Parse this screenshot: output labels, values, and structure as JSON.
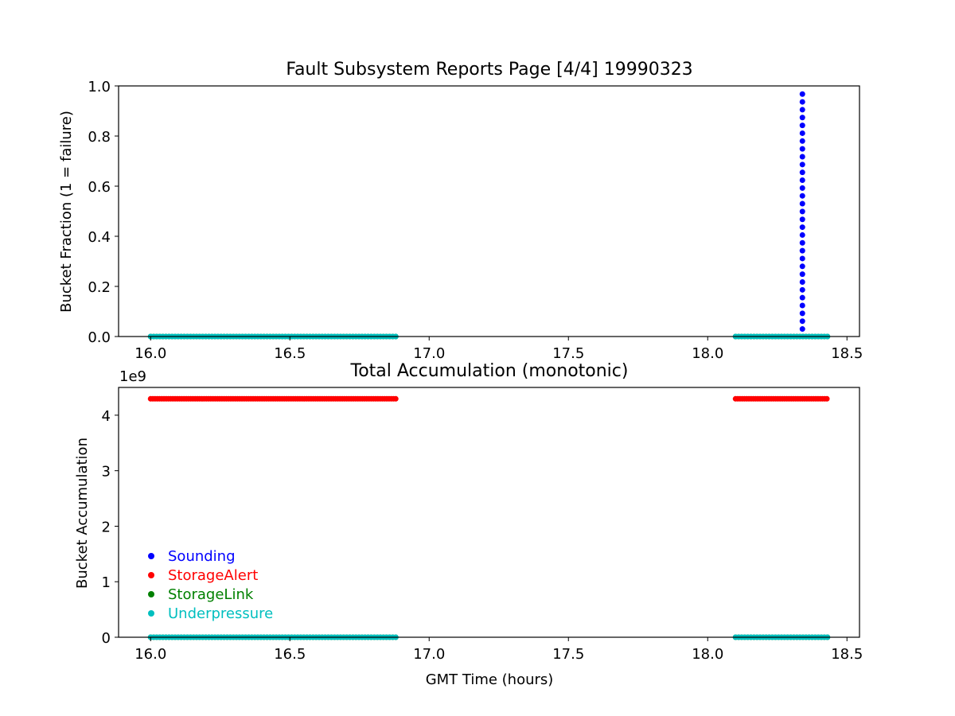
{
  "chart_data": [
    {
      "type": "scatter",
      "title": "Fault Subsystem Reports Page [4/4] 19990323",
      "xlabel": "",
      "ylabel": "Bucket Fraction (1 = failure)",
      "xlim": [
        15.885,
        18.545
      ],
      "ylim": [
        0.0,
        1.0
      ],
      "xticks": [
        16.0,
        16.5,
        17.0,
        17.5,
        18.0,
        18.5
      ],
      "xtick_labels": [
        "16.0",
        "16.5",
        "17.0",
        "17.5",
        "18.0",
        "18.5"
      ],
      "yticks": [
        0.0,
        0.2,
        0.4,
        0.6,
        0.8,
        1.0
      ],
      "ytick_labels": [
        "0.0",
        "0.2",
        "0.4",
        "0.6",
        "0.8",
        "1.0"
      ],
      "grid": false,
      "series": [
        {
          "name": "Sounding",
          "color": "#0000ff",
          "points": [
            {
              "x_start": 18.34,
              "x_end": 18.34,
              "step": 0.01,
              "y_start": 0.03,
              "y_end": 0.97,
              "y_step": 0.03125
            }
          ]
        },
        {
          "name": "StorageAlert",
          "color": "#ff0000",
          "points": []
        },
        {
          "name": "StorageLink",
          "color": "#008000",
          "points": [
            {
              "x_start": 16.0,
              "x_end": 16.88,
              "step": 0.011,
              "y": 0.0
            },
            {
              "x_start": 18.1,
              "x_end": 18.43,
              "step": 0.011,
              "y": 0.0
            }
          ]
        },
        {
          "name": "Underpressure",
          "color": "#00bfbf",
          "points": [
            {
              "x_start": 16.0,
              "x_end": 16.88,
              "step": 0.011,
              "y": 0.0
            },
            {
              "x_start": 18.1,
              "x_end": 18.43,
              "step": 0.011,
              "y": 0.0
            }
          ]
        }
      ]
    },
    {
      "type": "scatter",
      "title": "Total Accumulation (monotonic)",
      "xlabel": "GMT Time (hours)",
      "ylabel": "Bucket Accumulation",
      "offset_label": "1e9",
      "xlim": [
        15.885,
        18.545
      ],
      "ylim": [
        0.0,
        4.5
      ],
      "xticks": [
        16.0,
        16.5,
        17.0,
        17.5,
        18.0,
        18.5
      ],
      "xtick_labels": [
        "16.0",
        "16.5",
        "17.0",
        "17.5",
        "18.0",
        "18.5"
      ],
      "yticks": [
        0,
        1,
        2,
        3,
        4
      ],
      "ytick_labels": [
        "0",
        "1",
        "2",
        "3",
        "4"
      ],
      "grid": false,
      "legend": {
        "placement": "lower-left",
        "entries": [
          {
            "label": "Sounding",
            "color": "#0000ff"
          },
          {
            "label": "StorageAlert",
            "color": "#ff0000"
          },
          {
            "label": "StorageLink",
            "color": "#008000"
          },
          {
            "label": "Underpressure",
            "color": "#00bfbf"
          }
        ]
      },
      "series": [
        {
          "name": "Sounding",
          "color": "#0000ff",
          "points": []
        },
        {
          "name": "StorageAlert",
          "color": "#ff0000",
          "points": [
            {
              "x_start": 16.0,
              "x_end": 16.88,
              "step": 0.008,
              "y": 4.295
            },
            {
              "x_start": 18.1,
              "x_end": 18.43,
              "step": 0.008,
              "y": 4.295
            }
          ]
        },
        {
          "name": "StorageLink",
          "color": "#008000",
          "points": [
            {
              "x_start": 16.0,
              "x_end": 16.88,
              "step": 0.011,
              "y": 0.0
            },
            {
              "x_start": 18.1,
              "x_end": 18.43,
              "step": 0.011,
              "y": 0.0
            }
          ]
        },
        {
          "name": "Underpressure",
          "color": "#00bfbf",
          "points": [
            {
              "x_start": 16.0,
              "x_end": 16.88,
              "step": 0.011,
              "y": 0.0
            },
            {
              "x_start": 18.1,
              "x_end": 18.43,
              "step": 0.011,
              "y": 0.0
            }
          ]
        }
      ]
    }
  ]
}
